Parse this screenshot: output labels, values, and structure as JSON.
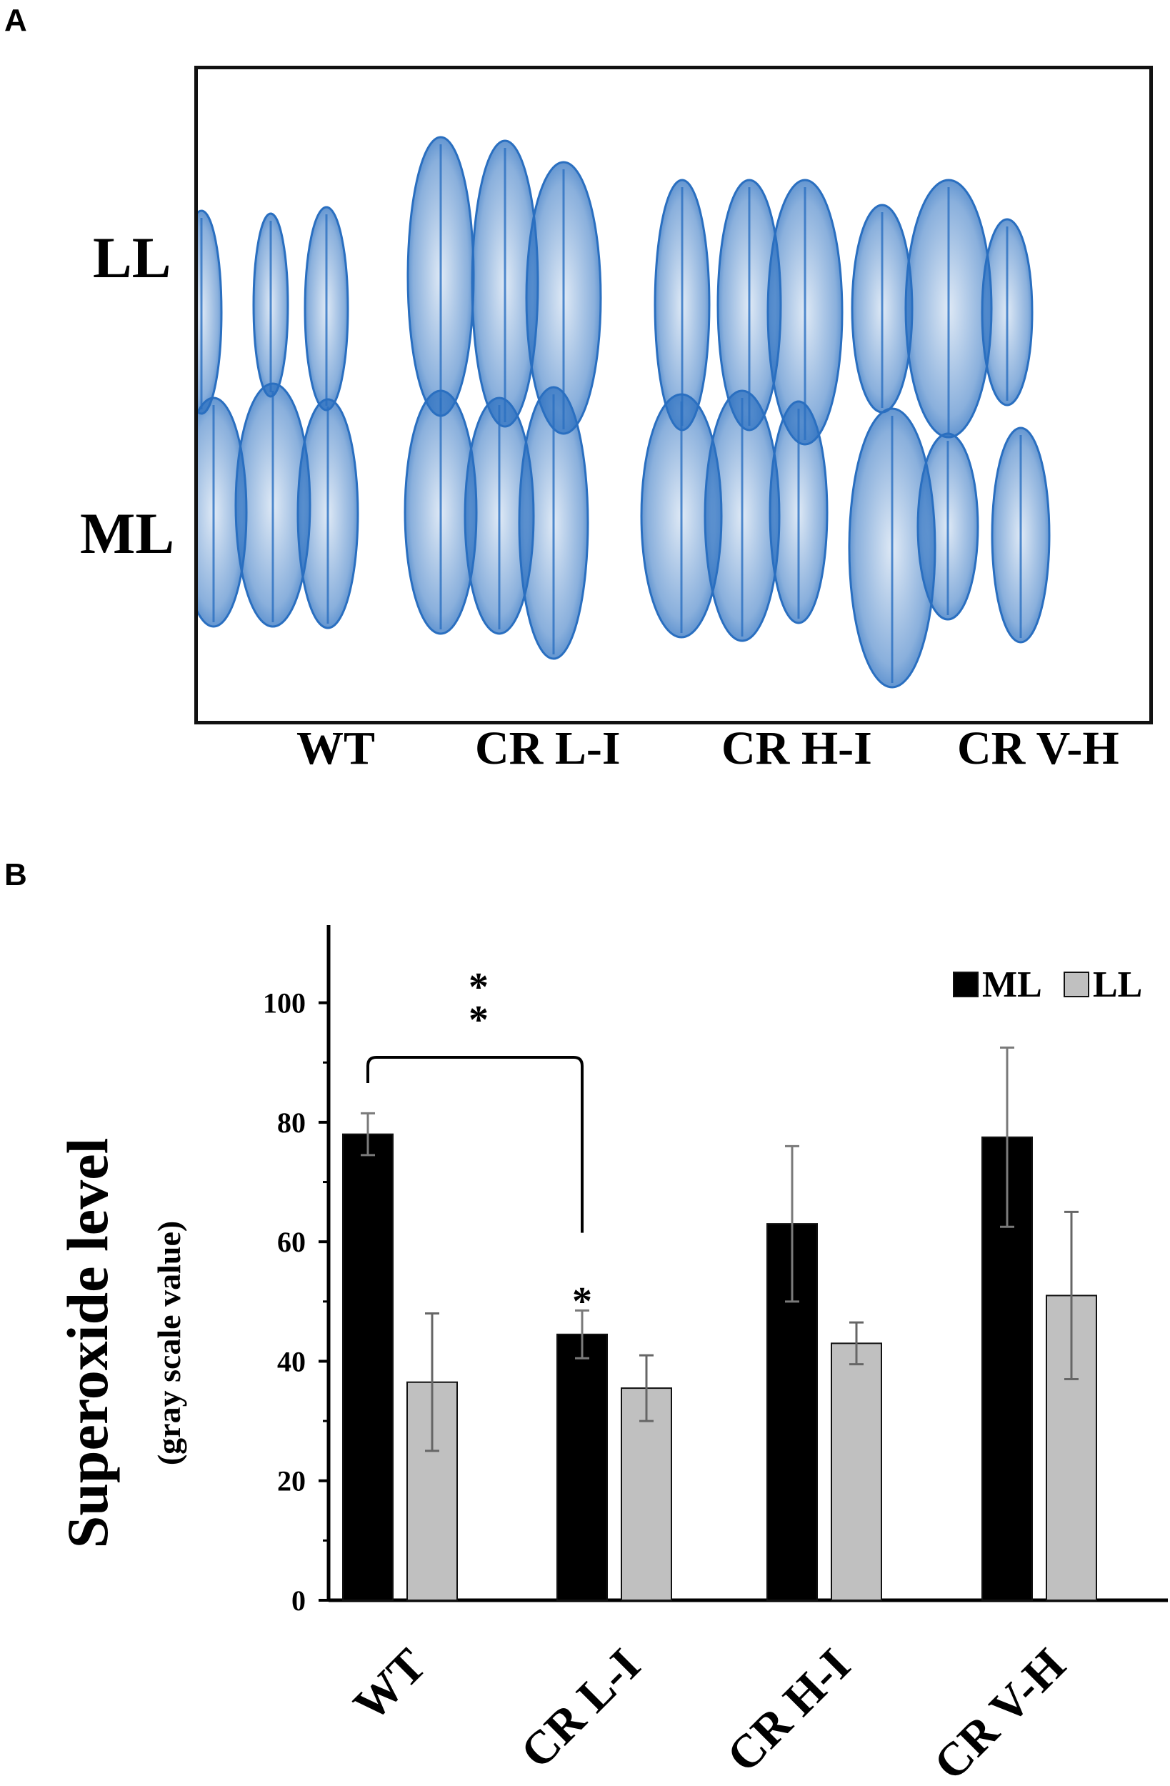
{
  "panel_a": {
    "letter": "A",
    "rows": [
      "LL",
      "ML"
    ],
    "genotypes": [
      "WT",
      "CR L-I",
      "CR H-I",
      "CR V-H"
    ],
    "stain_color": "#2a6fc0"
  },
  "panel_b": {
    "letter": "B"
  },
  "chart_data": {
    "type": "bar",
    "ylabel": "Superoxide level",
    "ylabel_sub": "(gray scale value)",
    "categories": [
      "WT",
      "CR L-I",
      "CR H-I",
      "CR V-H"
    ],
    "ylim": [
      0,
      110
    ],
    "yticks": [
      0,
      20,
      40,
      60,
      80,
      100
    ],
    "grid": false,
    "legend_position": "top-right",
    "series": [
      {
        "name": "ML",
        "color": "#000000",
        "values": [
          78,
          44.5,
          63,
          77.5
        ],
        "errors": [
          3.5,
          4,
          13,
          15
        ]
      },
      {
        "name": "LL",
        "color": "#c0c0c0",
        "values": [
          36.5,
          35.5,
          43,
          51
        ],
        "errors": [
          11.5,
          5.5,
          3.5,
          14
        ]
      }
    ],
    "annotations": [
      {
        "text": "**",
        "type": "bracket",
        "from": "WT",
        "to": "CR L-I"
      },
      {
        "text": "*",
        "type": "bar-label",
        "category": "CR L-I",
        "series": "ML"
      }
    ]
  }
}
